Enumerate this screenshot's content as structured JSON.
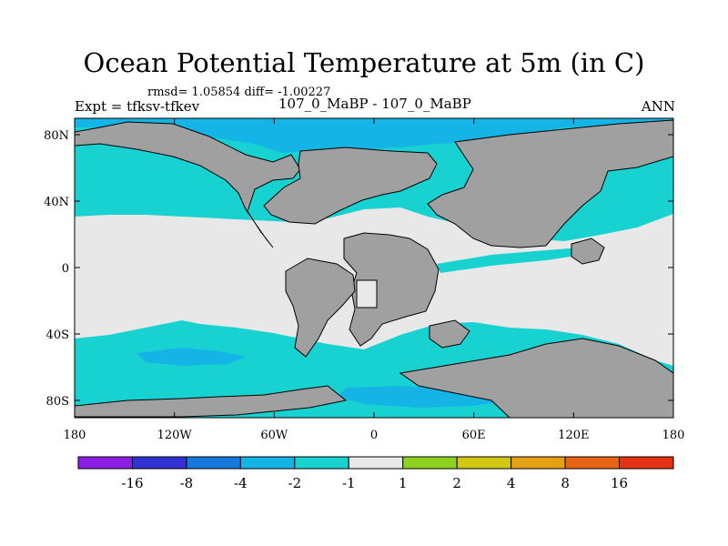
{
  "title": "Ocean Potential Temperature at 5m (in C)",
  "stats": "rmsd= 1.05854 diff= -1.00227",
  "expt": "Expt = tfksv-tfkev",
  "runs": "107_0_MaBP - 107_0_MaBP",
  "season": "ANN",
  "x_ticks": [
    "180",
    "120W",
    "60W",
    "0",
    "60E",
    "120E",
    "180"
  ],
  "y_ticks": [
    "80N",
    "40N",
    "0",
    "40S",
    "80S"
  ],
  "colorbar": {
    "colors": [
      "#8c1ee6",
      "#3232d2",
      "#1478dc",
      "#14b4e6",
      "#18d2d2",
      "#e8e8e8",
      "#8cd21e",
      "#d2c814",
      "#e6a014",
      "#e66414",
      "#e63214"
    ],
    "labels": [
      "-16",
      "-8",
      "-4",
      "-2",
      "-1",
      "1",
      "2",
      "4",
      "8",
      "16"
    ]
  },
  "colors": {
    "land": "#a0a0a0",
    "neutral": "#e8e8e8",
    "cool_1": "#18d2d2",
    "cool_2": "#14b4e6"
  }
}
